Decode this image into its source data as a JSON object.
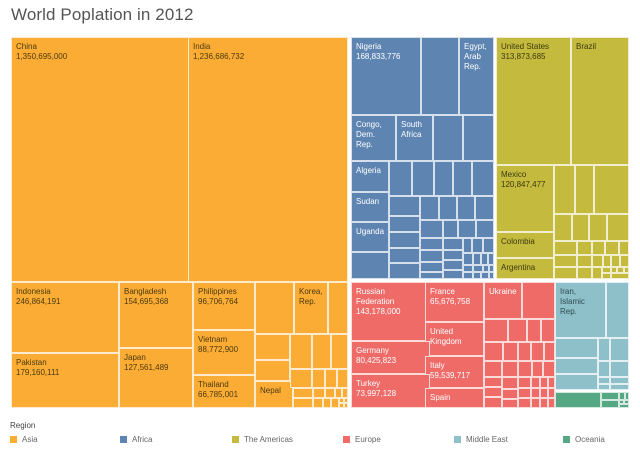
{
  "chart_data": {
    "type": "treemap",
    "title": "World Poplation in 2012",
    "legend": {
      "title": "Region",
      "placement": "bottom",
      "entries": [
        {
          "name": "Asia",
          "color": "#FBAC34"
        },
        {
          "name": "Africa",
          "color": "#5E84B2"
        },
        {
          "name": "The Americas",
          "color": "#C3BA3E"
        },
        {
          "name": "Europe",
          "color": "#EE6B68"
        },
        {
          "name": "Middle East",
          "color": "#8EC0C9"
        },
        {
          "name": "Oceania",
          "color": "#56A784"
        }
      ]
    },
    "label_colors": {
      "Asia": "#4a3a10",
      "Africa": "#ffffff",
      "The Americas": "#3d3a10",
      "Europe": "#ffffff",
      "Middle East": "#2f4a50",
      "Oceania": "#ffffff"
    },
    "labeled_countries": [
      {
        "region": "Asia",
        "name": "China",
        "value": "1,350,695,000"
      },
      {
        "region": "Asia",
        "name": "India",
        "value": "1,236,686,732"
      },
      {
        "region": "Asia",
        "name": "Indonesia",
        "value": "246,864,191"
      },
      {
        "region": "Asia",
        "name": "Pakistan",
        "value": "179,160,111"
      },
      {
        "region": "Asia",
        "name": "Bangladesh",
        "value": "154,695,368"
      },
      {
        "region": "Asia",
        "name": "Japan",
        "value": "127,561,489"
      },
      {
        "region": "Asia",
        "name": "Philippines",
        "value": "96,706,764"
      },
      {
        "region": "Asia",
        "name": "Vietnam",
        "value": "88,772,900"
      },
      {
        "region": "Asia",
        "name": "Thailand",
        "value": "66,785,001"
      },
      {
        "region": "Asia",
        "name": "Korea,\nRep.",
        "value": ""
      },
      {
        "region": "Asia",
        "name": "Nepal",
        "value": ""
      },
      {
        "region": "Africa",
        "name": "Nigeria",
        "value": "168,833,776"
      },
      {
        "region": "Africa",
        "name": "Egypt,\nArab\nRep.",
        "value": ""
      },
      {
        "region": "Africa",
        "name": "Congo,\nDem.\nRep.",
        "value": ""
      },
      {
        "region": "Africa",
        "name": "South\nAfrica",
        "value": ""
      },
      {
        "region": "Africa",
        "name": "Algeria",
        "value": ""
      },
      {
        "region": "Africa",
        "name": "Sudan",
        "value": ""
      },
      {
        "region": "Africa",
        "name": "Uganda",
        "value": ""
      },
      {
        "region": "The Americas",
        "name": "United States",
        "value": "313,873,685"
      },
      {
        "region": "The Americas",
        "name": "Brazil",
        "value": ""
      },
      {
        "region": "The Americas",
        "name": "Mexico",
        "value": "120,847,477"
      },
      {
        "region": "The Americas",
        "name": "Colombia",
        "value": ""
      },
      {
        "region": "The Americas",
        "name": "Argentina",
        "value": ""
      },
      {
        "region": "Europe",
        "name": "Russian\nFederation",
        "value": "143,178,000"
      },
      {
        "region": "Europe",
        "name": "France",
        "value": "65,676,758"
      },
      {
        "region": "Europe",
        "name": "Ukraine",
        "value": ""
      },
      {
        "region": "Europe",
        "name": "United\nKingdom",
        "value": ""
      },
      {
        "region": "Europe",
        "name": "Germany",
        "value": "80,425,823"
      },
      {
        "region": "Europe",
        "name": "Italy",
        "value": "59,539,717"
      },
      {
        "region": "Europe",
        "name": "Turkey",
        "value": "73,997,128"
      },
      {
        "region": "Europe",
        "name": "Spain",
        "value": ""
      },
      {
        "region": "Middle East",
        "name": "Iran,\nIslamic\nRep.",
        "value": ""
      }
    ]
  }
}
